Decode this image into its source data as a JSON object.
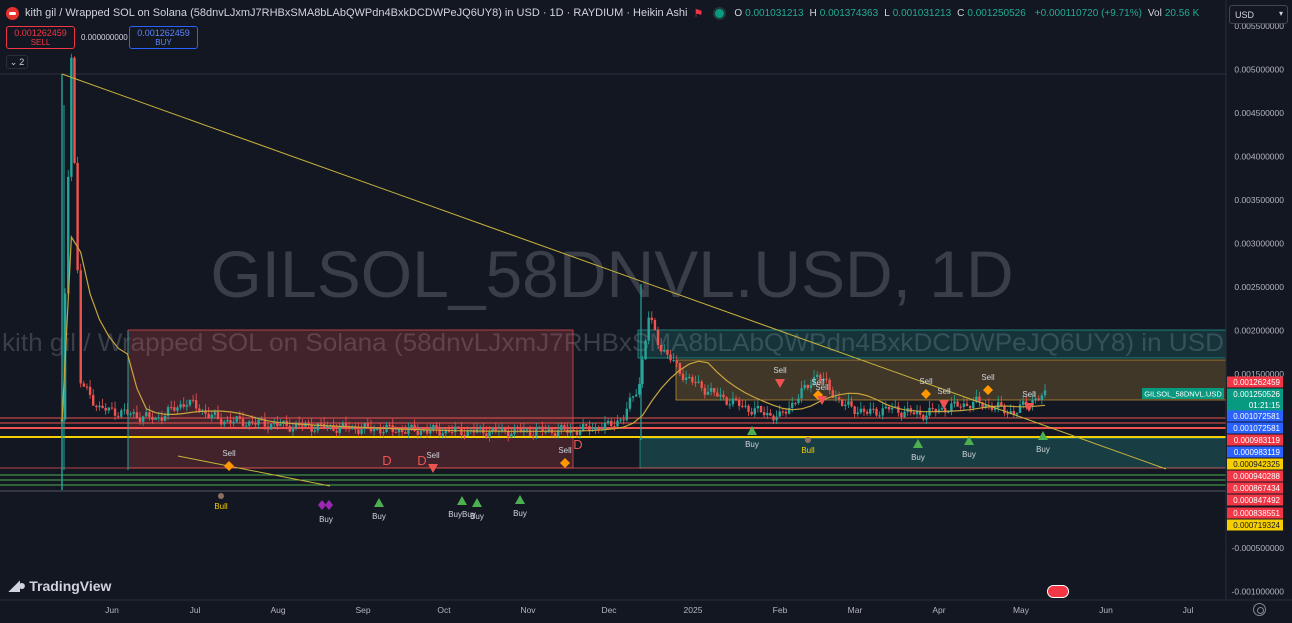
{
  "header": {
    "title": "kith gil / Wrapped SOL on Solana (58dnvLJxmJ7RHBxSMA8bLAbQWPdn4BxkDCDWPeJQ6UY8) in USD · 1D · RAYDIUM · Heikin Ashi",
    "ohlc": [
      {
        "k": "O",
        "v": "0.001031213"
      },
      {
        "k": "H",
        "v": "0.001374363"
      },
      {
        "k": "L",
        "v": "0.001031213"
      },
      {
        "k": "C",
        "v": "0.001250526"
      },
      {
        "k": "",
        "v": "+0.000110720 (+9.71%)"
      },
      {
        "k": "Vol",
        "v": "20.56 K"
      }
    ]
  },
  "trade": {
    "sell_price": "0.001262459",
    "sell_label": "SELL",
    "spread": "0.000000000",
    "buy_price": "0.001262459",
    "buy_label": "BUY"
  },
  "collapse_count": "2",
  "currency": "USD",
  "watermark": {
    "main": "GILSOL_58DNVL.USD, 1D",
    "sub": "kith gil / Wrapped SOL on Solana (58dnvLJxmJ7RHBxSMA8bLAbQWPdn4BxkDCDWPeJQ6UY8) in USD"
  },
  "logo_text": "TradingView",
  "colors": {
    "background": "#131722",
    "up": "#26a69a",
    "down": "#ef5350",
    "trendline": "#c8b43c",
    "ma": "#c8a53c",
    "buy_signal": "#4caf50",
    "sell_signal": "#ff9800",
    "purple_signal": "#9c27b0"
  },
  "chart_data": {
    "type": "candlestick",
    "chart_style": "Heikin Ashi",
    "interval": "1D",
    "y_range": [
      -0.0011,
      0.0058
    ],
    "y_ticks": [
      "0.005500000",
      "0.005000000",
      "0.004500000",
      "0.004000000",
      "0.003500000",
      "0.003000000",
      "0.002500000",
      "0.002000000",
      "0.001500000",
      "-0.000500000",
      "-0.001000000"
    ],
    "x_ticks": [
      "Jun",
      "Jul",
      "Aug",
      "Sep",
      "Oct",
      "Nov",
      "Dec",
      "2025",
      "Feb",
      "Mar",
      "Apr",
      "May",
      "Jun",
      "Jul"
    ],
    "series": [
      {
        "name": "close (approx.)",
        "values": [
          [
            0,
            0.00095
          ],
          [
            3,
            0.0052
          ],
          [
            6,
            0.0014
          ],
          [
            12,
            0.0011
          ],
          [
            20,
            0.00105
          ],
          [
            30,
            0.00098
          ],
          [
            40,
            0.00118
          ],
          [
            50,
            0.00097
          ],
          [
            70,
            0.00091
          ],
          [
            90,
            0.00088
          ],
          [
            110,
            0.00085
          ],
          [
            130,
            0.00084
          ],
          [
            150,
            0.00084
          ],
          [
            165,
            0.00085
          ],
          [
            175,
            0.0009
          ],
          [
            180,
            0.001
          ],
          [
            185,
            0.0014
          ],
          [
            188,
            0.00215
          ],
          [
            192,
            0.0018
          ],
          [
            200,
            0.00145
          ],
          [
            210,
            0.00125
          ],
          [
            220,
            0.0011
          ],
          [
            230,
            0.001
          ],
          [
            237,
            0.00128
          ],
          [
            242,
            0.0015
          ],
          [
            250,
            0.00115
          ],
          [
            258,
            0.00105
          ],
          [
            265,
            0.0011
          ],
          [
            275,
            0.00103
          ],
          [
            285,
            0.00112
          ],
          [
            293,
            0.00117
          ],
          [
            300,
            0.00111
          ],
          [
            305,
            0.00105
          ],
          [
            310,
            0.00118
          ],
          [
            315,
            0.00125
          ]
        ]
      }
    ],
    "price_labels": [
      {
        "text": "0.001262459",
        "color": "#f23645"
      },
      {
        "text": "0.001250526",
        "color": "#089981"
      },
      {
        "text": "01:21:15",
        "color": "#089981"
      },
      {
        "text": "0.001072581",
        "color": "#2962ff"
      },
      {
        "text": "0.001072581",
        "color": "#2962ff"
      },
      {
        "text": "0.000983119",
        "color": "#f23645"
      },
      {
        "text": "0.000983119",
        "color": "#2962ff"
      },
      {
        "text": "0.000942325",
        "color": "#f7cf00"
      },
      {
        "text": "0.000940288",
        "color": "#f23645"
      },
      {
        "text": "0.000867434",
        "color": "#f23645"
      },
      {
        "text": "0.000847492",
        "color": "#f23645"
      },
      {
        "text": "0.000838551",
        "color": "#f23645"
      },
      {
        "text": "0.000719324",
        "color": "#f7cf00"
      }
    ],
    "symbol_tag": "GILSOL_58DNVL.USD",
    "signal_labels": {
      "sell": "Sell",
      "buy": "Buy",
      "bull": "Bull",
      "buybuy": "BuyBuy",
      "d": "D"
    }
  }
}
